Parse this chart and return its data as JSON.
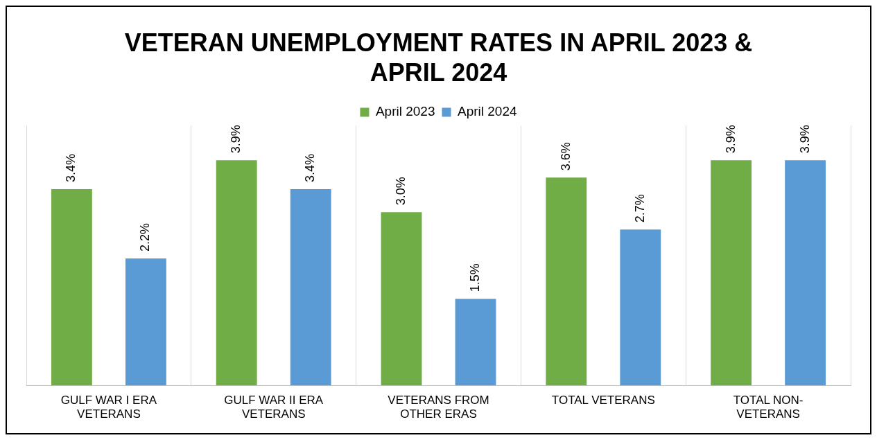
{
  "chart_data": {
    "type": "bar",
    "title": "VETERAN UNEMPLOYMENT RATES IN APRIL 2023 & APRIL 2024",
    "categories": [
      "GULF WAR I ERA VETERANS",
      "GULF WAR II ERA VETERANS",
      "VETERANS FROM OTHER ERAS",
      "TOTAL VETERANS",
      "TOTAL NON-VETERANS"
    ],
    "series": [
      {
        "name": "April 2023",
        "color": "#70ad47",
        "values": [
          3.4,
          3.9,
          3.0,
          3.6,
          3.9
        ],
        "value_labels": [
          "3.4%",
          "3.9%",
          "3.0%",
          "3.6%",
          "3.9%"
        ]
      },
      {
        "name": "April 2024",
        "color": "#5b9bd5",
        "values": [
          2.2,
          3.4,
          1.5,
          2.7,
          3.9
        ],
        "value_labels": [
          "2.2%",
          "3.4%",
          "1.5%",
          "2.7%",
          "3.9%"
        ]
      }
    ],
    "legend": "top",
    "grid": "x"
  }
}
